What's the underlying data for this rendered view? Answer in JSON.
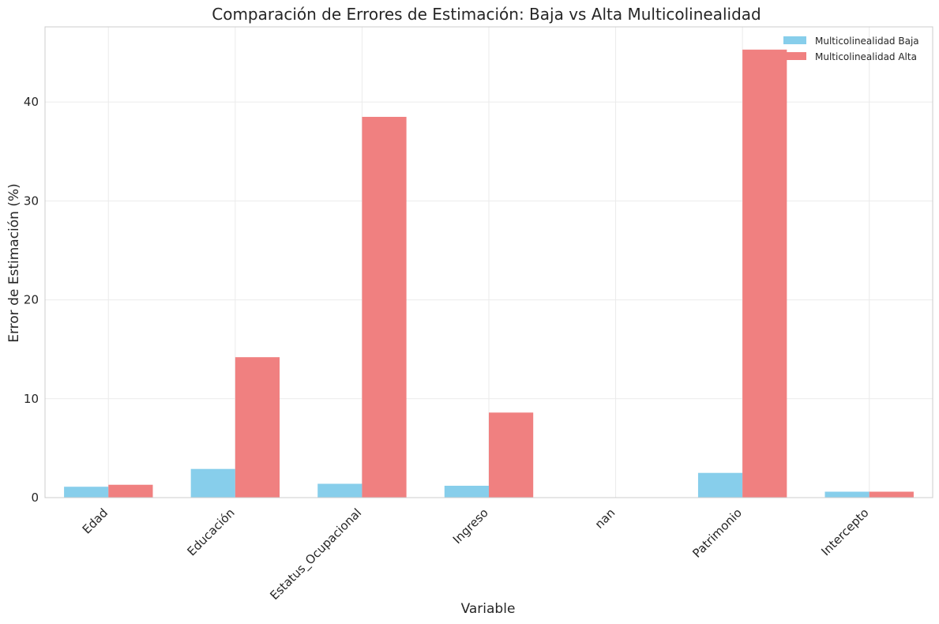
{
  "chart_data": {
    "type": "bar",
    "title": "Comparación de Errores de Estimación: Baja vs Alta Multicolinealidad",
    "xlabel": "Variable",
    "ylabel": "Error de Estimación (%)",
    "categories": [
      "Edad",
      "Educación",
      "Estatus_Ocupacional",
      "Ingreso",
      "nan",
      "Patrimonio",
      "Intercepto"
    ],
    "series": [
      {
        "name": "Multicolinealidad Baja",
        "color": "#87ceeb",
        "values": [
          1.1,
          2.9,
          1.4,
          1.2,
          0,
          2.5,
          0.6
        ]
      },
      {
        "name": "Multicolinealidad Alta",
        "color": "#f08080",
        "values": [
          1.3,
          14.2,
          38.5,
          8.6,
          0,
          45.3,
          0.6
        ]
      }
    ],
    "ylim": [
      0,
      47.6
    ],
    "yticks": [
      0,
      10,
      20,
      30,
      40
    ],
    "grid": true,
    "legend_position": "top-right"
  }
}
